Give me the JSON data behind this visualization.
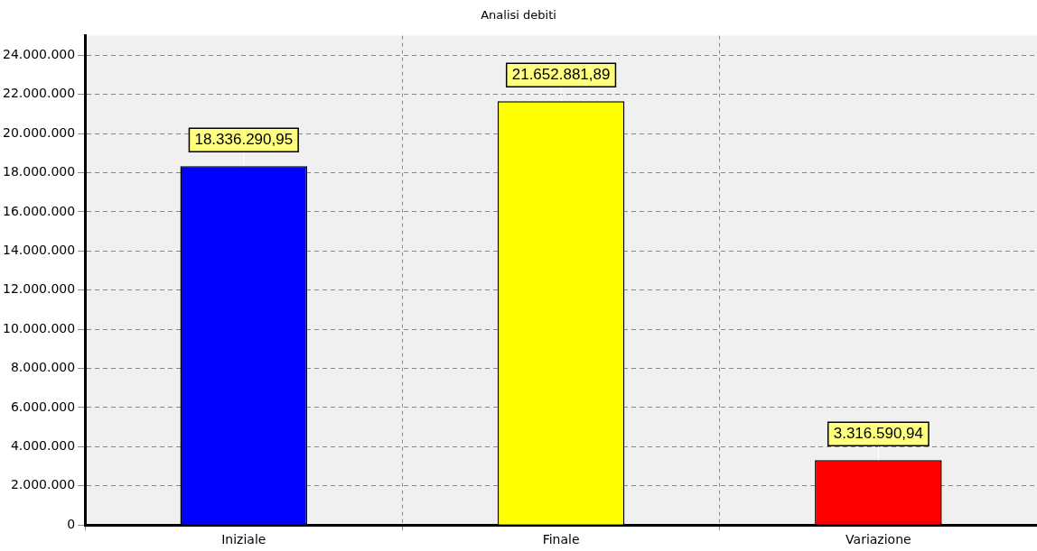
{
  "chart_data": {
    "type": "bar",
    "title": "Analisi debiti",
    "categories": [
      "Iniziale",
      "Finale",
      "Variazione"
    ],
    "values": [
      18336290.95,
      21652881.89,
      3316590.94
    ],
    "colors": [
      "#0000ff",
      "#ffff00",
      "#ff0000"
    ],
    "ylim": [
      0,
      25000000
    ],
    "yticks": [
      0,
      {
        "value": 2000000,
        "label": "2.000.000"
      },
      {
        "value": 4000000,
        "label": "4.000.000"
      },
      {
        "value": 6000000,
        "label": "6.000.000"
      },
      {
        "value": 8000000,
        "label": "8.000.000"
      },
      {
        "value": 10000000,
        "label": "10.000.000"
      },
      {
        "value": 12000000,
        "label": "12.000.000"
      },
      {
        "value": 14000000,
        "label": "14.000.000"
      },
      {
        "value": 16000000,
        "label": "16.000.000"
      },
      {
        "value": 18000000,
        "label": "18.000.000"
      },
      {
        "value": 20000000,
        "label": "20.000.000"
      },
      {
        "value": 22000000,
        "label": "22.000.000"
      },
      {
        "value": 24000000,
        "label": "24.000.000"
      }
    ],
    "value_labels": [
      "18.336.290,95",
      "21.652.881,89",
      "3.316.590,94"
    ],
    "grid": true,
    "legend": false
  }
}
